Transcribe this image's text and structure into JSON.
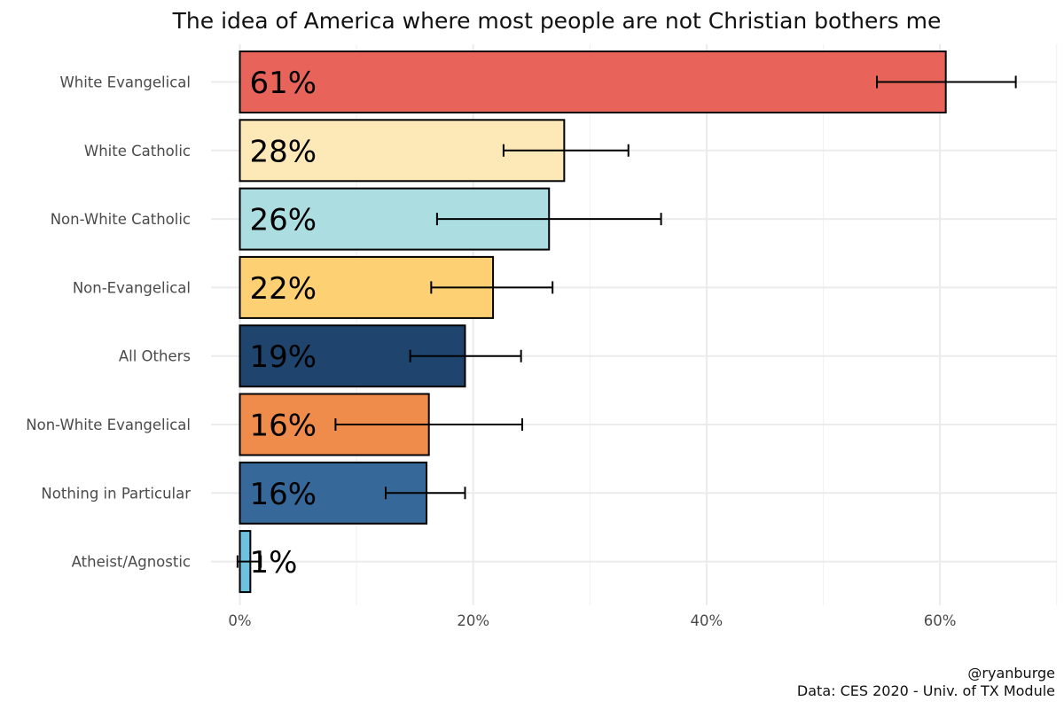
{
  "chart_data": {
    "type": "bar",
    "orientation": "horizontal",
    "title": "The idea of America where most people are not Christian bothers me",
    "xlabel": "",
    "ylabel": "",
    "xlim": [
      0,
      70
    ],
    "x_ticks": [
      0,
      20,
      40,
      60
    ],
    "x_tick_labels": [
      "0%",
      "20%",
      "40%",
      "60%"
    ],
    "grid": true,
    "legend": "none",
    "categories": [
      "White Evangelical",
      "White Catholic",
      "Non-White Catholic",
      "Non-Evangelical",
      "All Others",
      "Non-White Evangelical",
      "Nothing in Particular",
      "Atheist/Agnostic"
    ],
    "values": [
      60.5,
      27.8,
      26.5,
      21.7,
      19.3,
      16.2,
      16.0,
      0.9
    ],
    "labels": [
      "61%",
      "28%",
      "26%",
      "22%",
      "19%",
      "16%",
      "16%",
      "1%"
    ],
    "error_low": [
      54.6,
      22.6,
      16.9,
      16.4,
      14.6,
      8.2,
      12.5,
      -0.2
    ],
    "error_high": [
      66.5,
      33.3,
      36.1,
      26.8,
      24.1,
      24.2,
      19.3,
      1.8
    ],
    "colors": [
      "#e8635a",
      "#fde8b8",
      "#acdde0",
      "#fdd073",
      "#1f456e",
      "#ef8c4c",
      "#36689a",
      "#6cc2df"
    ]
  },
  "caption": {
    "handle": "@ryanburge",
    "source": "Data: CES 2020 - Univ. of TX Module"
  }
}
